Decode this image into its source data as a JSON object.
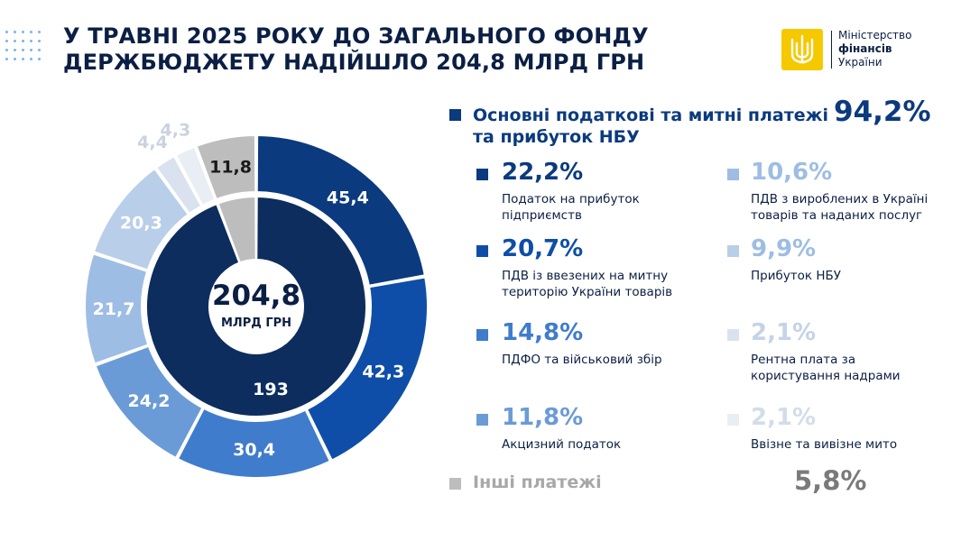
{
  "header": {
    "title_line1": "У ТРАВНІ 2025 РОКУ ДО ЗАГАЛЬНОГО ФОНДУ",
    "title_line2": "ДЕРЖБЮДЖЕТУ НАДІЙШЛО 204,8 МЛРД ГРН"
  },
  "logo": {
    "line1": "Міністерство",
    "line2": "фінансів",
    "line3": "України"
  },
  "colors": {
    "dark_navy": "#0d2d5e",
    "c1": "#0b3a7e",
    "c2": "#0e4ea8",
    "c3": "#3f7ccc",
    "c4": "#6b9bd6",
    "c5": "#9ebde4",
    "c6": "#b9cee8",
    "c7": "#d9e2ee",
    "c8": "#e9eef4",
    "grey": "#bdbdbd"
  },
  "chart_data": {
    "type": "donut",
    "total_label": "204,8",
    "total_unit": "МЛРД ГРН",
    "inner_ring": [
      {
        "name": "Основні податкові та митні платежі та прибуток НБУ",
        "value": 193,
        "label": "193",
        "color_key": "dark_navy"
      },
      {
        "name": "Інші платежі",
        "value": 11.8,
        "label": "11,8",
        "color_key": "grey"
      }
    ],
    "outer_ring": [
      {
        "value": 45.4,
        "label": "45,4",
        "color_key": "c1"
      },
      {
        "value": 42.3,
        "label": "42,3",
        "color_key": "c2"
      },
      {
        "value": 30.4,
        "label": "30,4",
        "color_key": "c3"
      },
      {
        "value": 24.2,
        "label": "24,2",
        "color_key": "c4"
      },
      {
        "value": 21.7,
        "label": "21,7",
        "color_key": "c5"
      },
      {
        "value": 20.3,
        "label": "20,3",
        "color_key": "c6"
      },
      {
        "value": 4.4,
        "label": "4,4",
        "color_key": "c7"
      },
      {
        "value": 4.3,
        "label": "4,3",
        "color_key": "c8"
      },
      {
        "value": 11.8,
        "label": "11,8",
        "color_key": "grey"
      }
    ]
  },
  "legend": {
    "main_label": "Основні податкові та митні платежі та прибуток НБУ",
    "main_pct": "94,2%",
    "items": [
      {
        "pct": "22,2%",
        "desc": "Податок на прибуток підприємств",
        "color_key": "c1"
      },
      {
        "pct": "20,7%",
        "desc": "ПДВ із ввезених на митну територію України товарів",
        "color_key": "c2"
      },
      {
        "pct": "14,8%",
        "desc": "ПДФО та військовий збір",
        "color_key": "c3"
      },
      {
        "pct": "11,8%",
        "desc": "Акцизний податок",
        "color_key": "c4"
      },
      {
        "pct": "10,6%",
        "desc": "ПДВ з вироблених в Україні товарів та наданих послуг",
        "color_key": "c5"
      },
      {
        "pct": "9,9%",
        "desc": "Прибуток НБУ",
        "color_key": "c6"
      },
      {
        "pct": "2,1%",
        "desc": "Рентна плата за користування надрами",
        "color_key": "c7"
      },
      {
        "pct": "2,1%",
        "desc": "Ввізне та вивізне мито",
        "color_key": "c8"
      }
    ],
    "other_label": "Інші платежі",
    "other_pct": "5,8%"
  }
}
